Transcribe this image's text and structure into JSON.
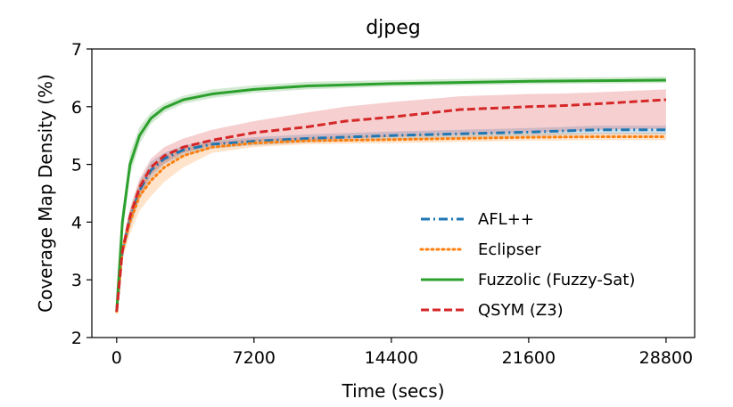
{
  "chart_data": {
    "type": "line",
    "title": "djpeg",
    "xlabel": "Time (secs)",
    "ylabel": "Coverage Map Density (%)",
    "xlim": [
      -1300,
      30300
    ],
    "ylim": [
      2,
      7
    ],
    "xticks": [
      0,
      7200,
      14400,
      21600,
      28800
    ],
    "yticks": [
      2,
      3,
      4,
      5,
      6,
      7
    ],
    "legend_position": "lower-right",
    "series": [
      {
        "name": "AFL++",
        "color": "#1f77b4",
        "dash": "dashdot",
        "x": [
          0,
          300,
          700,
          1200,
          1800,
          2500,
          3500,
          5000,
          7200,
          10000,
          14400,
          18000,
          21600,
          25200,
          28800
        ],
        "y": [
          2.45,
          3.5,
          4.05,
          4.55,
          4.9,
          5.1,
          5.25,
          5.35,
          5.4,
          5.45,
          5.5,
          5.53,
          5.56,
          5.6,
          5.6
        ],
        "lower": [
          2.45,
          3.4,
          3.9,
          4.4,
          4.75,
          5.0,
          5.15,
          5.27,
          5.33,
          5.38,
          5.43,
          5.46,
          5.49,
          5.52,
          5.52
        ],
        "upper": [
          2.45,
          3.6,
          4.2,
          4.7,
          5.05,
          5.2,
          5.33,
          5.42,
          5.47,
          5.52,
          5.57,
          5.6,
          5.63,
          5.67,
          5.67
        ]
      },
      {
        "name": "Eclipser",
        "color": "#ff7f0e",
        "dash": "dotted",
        "x": [
          0,
          300,
          700,
          1200,
          1800,
          2500,
          3500,
          5000,
          7200,
          10000,
          14400,
          18000,
          21600,
          25200,
          28800
        ],
        "y": [
          2.45,
          3.5,
          4.0,
          4.45,
          4.72,
          4.95,
          5.15,
          5.3,
          5.37,
          5.41,
          5.43,
          5.45,
          5.47,
          5.48,
          5.48
        ],
        "lower": [
          2.45,
          3.35,
          3.8,
          4.2,
          4.45,
          4.7,
          4.95,
          5.2,
          5.3,
          5.35,
          5.37,
          5.39,
          5.41,
          5.42,
          5.42
        ],
        "upper": [
          2.45,
          3.65,
          4.2,
          4.7,
          4.95,
          5.15,
          5.3,
          5.38,
          5.44,
          5.47,
          5.5,
          5.52,
          5.54,
          5.55,
          5.55
        ]
      },
      {
        "name": "Fuzzolic (Fuzzy-Sat)",
        "color": "#2ca02c",
        "dash": "solid",
        "x": [
          0,
          300,
          700,
          1200,
          1800,
          2500,
          3500,
          5000,
          7200,
          10000,
          14400,
          18000,
          21600,
          25200,
          28800
        ],
        "y": [
          2.45,
          4.0,
          5.0,
          5.5,
          5.8,
          5.98,
          6.12,
          6.22,
          6.3,
          6.36,
          6.4,
          6.42,
          6.44,
          6.45,
          6.46
        ],
        "lower": [
          2.45,
          3.8,
          4.8,
          5.35,
          5.7,
          5.9,
          6.05,
          6.15,
          6.24,
          6.3,
          6.35,
          6.37,
          6.39,
          6.4,
          6.41
        ],
        "upper": [
          2.45,
          4.2,
          5.2,
          5.65,
          5.9,
          6.06,
          6.19,
          6.3,
          6.37,
          6.43,
          6.46,
          6.48,
          6.5,
          6.51,
          6.52
        ]
      },
      {
        "name": "QSYM (Z3)",
        "color": "#d62728",
        "dash": "dashed",
        "x": [
          0,
          300,
          700,
          1200,
          1800,
          2500,
          3500,
          5000,
          7200,
          10000,
          12000,
          14400,
          18000,
          21600,
          23500,
          25200,
          28800
        ],
        "y": [
          2.45,
          3.5,
          4.1,
          4.6,
          4.95,
          5.15,
          5.3,
          5.42,
          5.55,
          5.65,
          5.75,
          5.82,
          5.95,
          6.0,
          6.02,
          6.05,
          6.12
        ],
        "lower": [
          2.45,
          3.4,
          3.95,
          4.45,
          4.82,
          5.02,
          5.2,
          5.33,
          5.4,
          5.42,
          5.45,
          5.48,
          5.52,
          5.55,
          5.57,
          5.6,
          5.62
        ],
        "upper": [
          2.45,
          3.6,
          4.25,
          4.75,
          5.1,
          5.3,
          5.45,
          5.6,
          5.75,
          5.9,
          6.0,
          6.08,
          6.18,
          6.22,
          6.23,
          6.25,
          6.3
        ]
      }
    ]
  }
}
